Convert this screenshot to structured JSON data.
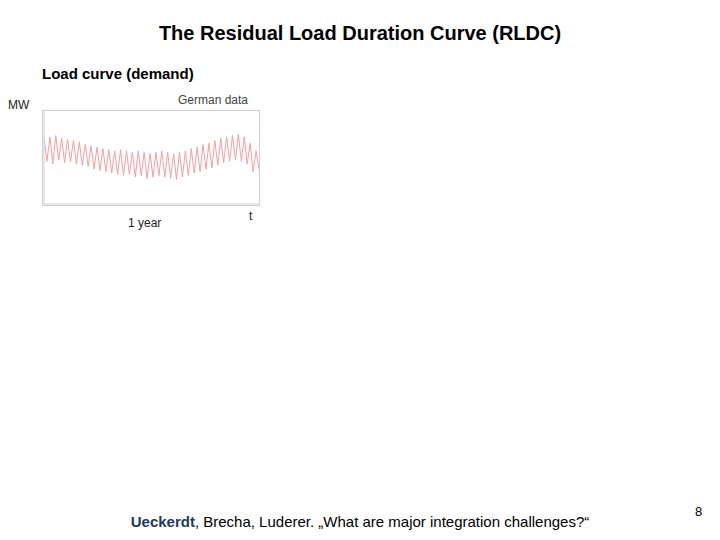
{
  "slide_title": "The Residual Load Duration Curve (RLDC)",
  "chart_data": {
    "type": "line",
    "title": "Load curve (demand)",
    "annotation": "German data",
    "y_label": "MW",
    "x_label": "1 year",
    "x_axis_end_label": "t",
    "tick_labels": false,
    "grid": false,
    "xlim": [
      0,
      365
    ],
    "ylim": [
      25000,
      97000
    ],
    "x": [
      0,
      5,
      10,
      15,
      20,
      25,
      30,
      35,
      40,
      45,
      50,
      55,
      60,
      65,
      70,
      75,
      80,
      85,
      90,
      95,
      100,
      105,
      110,
      115,
      120,
      125,
      130,
      135,
      140,
      145,
      150,
      155,
      160,
      165,
      170,
      175,
      180,
      185,
      190,
      195,
      200,
      205,
      210,
      215,
      220,
      225,
      230,
      235,
      240,
      245,
      250,
      255,
      260,
      265,
      270,
      275,
      280,
      285,
      290,
      295,
      300,
      305,
      310,
      315,
      320,
      325,
      330,
      335,
      340,
      345,
      350,
      355,
      360,
      365
    ],
    "series": [
      {
        "name": "Load",
        "color": "#f4a0a0",
        "values": [
          76000,
          58000,
          77000,
          56000,
          78000,
          59000,
          76000,
          57000,
          75000,
          58000,
          74000,
          56000,
          73000,
          55000,
          71000,
          54000,
          70000,
          52000,
          69000,
          51000,
          68000,
          50000,
          67000,
          49000,
          66000,
          48000,
          67000,
          47000,
          66000,
          48000,
          65000,
          46000,
          66000,
          47000,
          65000,
          45000,
          64000,
          46000,
          65000,
          47000,
          66000,
          46000,
          65000,
          45000,
          64000,
          44000,
          65000,
          46000,
          66000,
          47000,
          68000,
          49000,
          69000,
          50000,
          71000,
          52000,
          72000,
          53000,
          74000,
          55000,
          76000,
          57000,
          77000,
          58000,
          78000,
          59000,
          79000,
          58000,
          77000,
          56000,
          72000,
          50000,
          66000,
          52000
        ]
      }
    ]
  },
  "citation": {
    "authors_bold": "Ueckerdt",
    "rest": ", Brecha, Luderer. „What are major integration challenges?“"
  },
  "page_number": "8"
}
